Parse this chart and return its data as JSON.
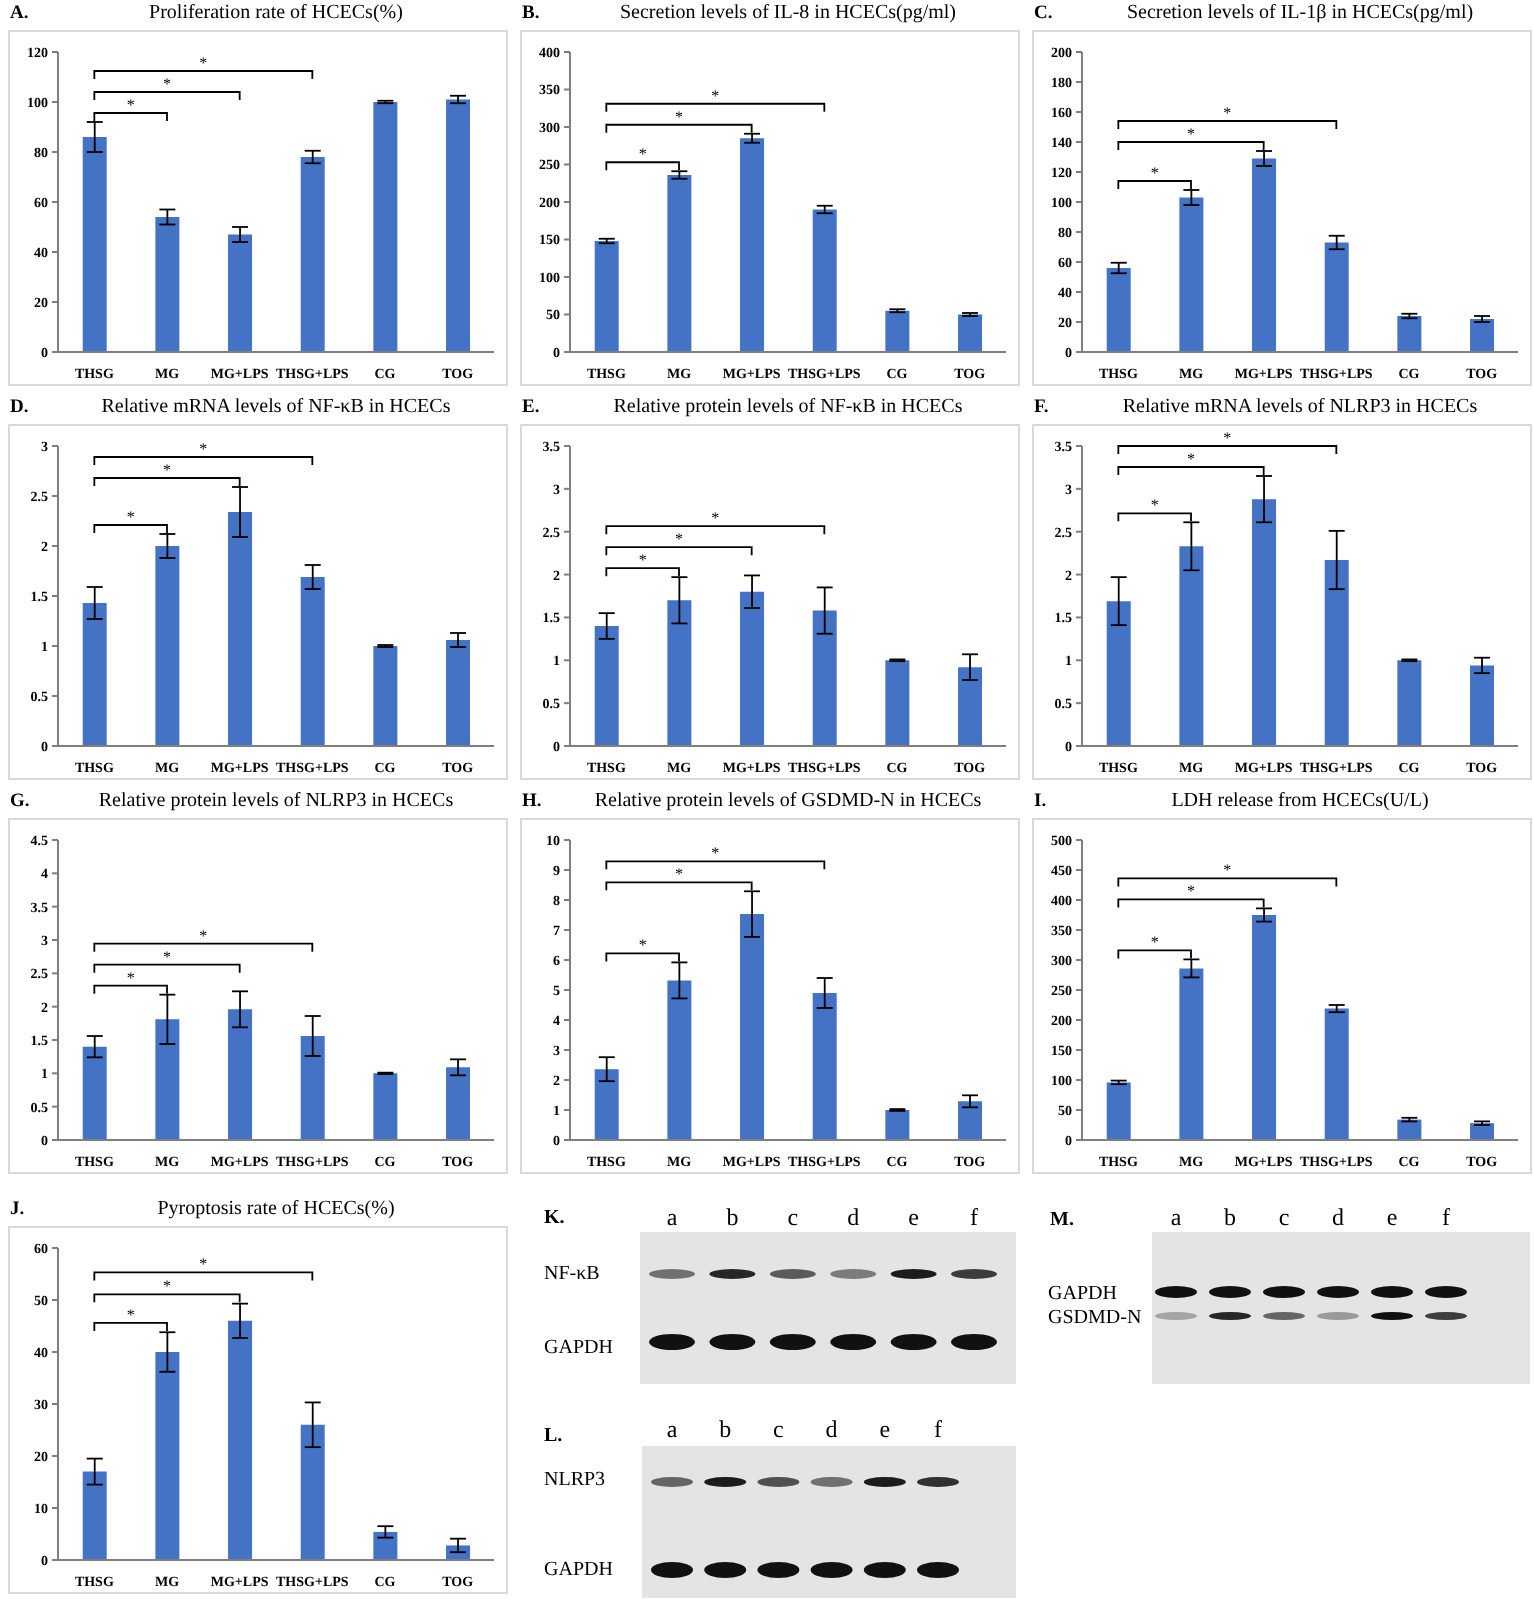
{
  "chart_data": [
    {
      "type": "bar",
      "title": "Proliferation rate of HCECs(%)",
      "annotations": [
        "A.",
        "*",
        "*",
        "*"
      ],
      "categories": [
        "THSG",
        "MG",
        "MG+LPS",
        "THSG+LPS",
        "CG",
        "TOG"
      ],
      "values": [
        86,
        54,
        47,
        78,
        100,
        101
      ],
      "errors": [
        6,
        3,
        3,
        2.5,
        0.5,
        1.5
      ],
      "color": "#4472c4",
      "ylim": [
        0,
        120
      ],
      "yticks": [
        0,
        20,
        40,
        60,
        80,
        100,
        120
      ]
    },
    {
      "type": "bar",
      "title": "Secretion levels of IL-8 in HCECs(pg/ml)",
      "annotations": [
        "B.",
        "*",
        "*",
        "*"
      ],
      "categories": [
        "THSG",
        "MG",
        "MG+LPS",
        "THSG+LPS",
        "CG",
        "TOG"
      ],
      "values": [
        148,
        236,
        285,
        190,
        55,
        50
      ],
      "errors": [
        3,
        5,
        6,
        5,
        2,
        2
      ],
      "color": "#4472c4",
      "ylim": [
        0,
        400
      ],
      "yticks": [
        0,
        50,
        100,
        150,
        200,
        250,
        300,
        350,
        400
      ]
    },
    {
      "type": "bar",
      "title": "Secretion levels of IL-1β in HCECs(pg/ml)",
      "annotations": [
        "C.",
        "*",
        "*",
        "*"
      ],
      "categories": [
        "THSG",
        "MG",
        "MG+LPS",
        "THSG+LPS",
        "CG",
        "TOG"
      ],
      "values": [
        56,
        103,
        129,
        73,
        24,
        22
      ],
      "errors": [
        3.5,
        5,
        5,
        4.5,
        1.5,
        2
      ],
      "color": "#4472c4",
      "ylim": [
        0,
        200
      ],
      "yticks": [
        0,
        20,
        40,
        60,
        80,
        100,
        120,
        140,
        160,
        180,
        200
      ]
    },
    {
      "type": "bar",
      "title": "Relative mRNA levels of NF-κB in HCECs",
      "annotations": [
        "D.",
        "*",
        "*",
        "*"
      ],
      "categories": [
        "THSG",
        "MG",
        "MG+LPS",
        "THSG+LPS",
        "CG",
        "TOG"
      ],
      "values": [
        1.43,
        2.0,
        2.34,
        1.69,
        1.0,
        1.06
      ],
      "errors": [
        0.16,
        0.12,
        0.25,
        0.12,
        0.01,
        0.07
      ],
      "color": "#4472c4",
      "ylim": [
        0,
        3
      ],
      "yticks": [
        0,
        0.5,
        1,
        1.5,
        2,
        2.5,
        3
      ]
    },
    {
      "type": "bar",
      "title": "Relative protein levels of NF-κB in HCECs",
      "annotations": [
        "E.",
        "*",
        "*",
        "*"
      ],
      "categories": [
        "THSG",
        "MG",
        "MG+LPS",
        "THSG+LPS",
        "CG",
        "TOG"
      ],
      "values": [
        1.4,
        1.7,
        1.8,
        1.58,
        1.0,
        0.92
      ],
      "errors": [
        0.15,
        0.27,
        0.19,
        0.27,
        0.01,
        0.15
      ],
      "color": "#4472c4",
      "ylim": [
        0,
        3.5
      ],
      "yticks": [
        0,
        0.5,
        1,
        1.5,
        2,
        2.5,
        3,
        3.5
      ]
    },
    {
      "type": "bar",
      "title": "Relative mRNA levels of NLRP3 in HCECs",
      "annotations": [
        "F.",
        "*",
        "*",
        "*"
      ],
      "categories": [
        "THSG",
        "MG",
        "MG+LPS",
        "THSG+LPS",
        "CG",
        "TOG"
      ],
      "values": [
        1.69,
        2.33,
        2.88,
        2.17,
        1.0,
        0.94
      ],
      "errors": [
        0.28,
        0.28,
        0.27,
        0.34,
        0.01,
        0.09
      ],
      "color": "#4472c4",
      "ylim": [
        0,
        3.5
      ],
      "yticks": [
        0,
        0.5,
        1,
        1.5,
        2,
        2.5,
        3,
        3.5
      ]
    },
    {
      "type": "bar",
      "title": "Relative protein levels of NLRP3 in HCECs",
      "annotations": [
        "G.",
        "*",
        "*",
        "*"
      ],
      "categories": [
        "THSG",
        "MG",
        "MG+LPS",
        "THSG+LPS",
        "CG",
        "TOG"
      ],
      "values": [
        1.4,
        1.81,
        1.96,
        1.56,
        1.0,
        1.09
      ],
      "errors": [
        0.16,
        0.37,
        0.27,
        0.3,
        0.01,
        0.12
      ],
      "color": "#4472c4",
      "ylim": [
        0,
        4.5
      ],
      "yticks": [
        0,
        0.5,
        1,
        1.5,
        2,
        2.5,
        3,
        3.5,
        4,
        4.5
      ]
    },
    {
      "type": "bar",
      "title": "Relative protein levels of GSDMD-N in HCECs",
      "annotations": [
        "H.",
        "*",
        "*",
        "*"
      ],
      "categories": [
        "THSG",
        "MG",
        "MG+LPS",
        "THSG+LPS",
        "CG",
        "TOG"
      ],
      "values": [
        2.36,
        5.32,
        7.53,
        4.9,
        1.0,
        1.29
      ],
      "errors": [
        0.4,
        0.6,
        0.76,
        0.5,
        0.03,
        0.2
      ],
      "color": "#4472c4",
      "ylim": [
        0,
        10
      ],
      "yticks": [
        0,
        1,
        2,
        3,
        4,
        5,
        6,
        7,
        8,
        9,
        10
      ]
    },
    {
      "type": "bar",
      "title": "LDH release from HCECs(U/L)",
      "annotations": [
        "I.",
        "*",
        "*",
        "*"
      ],
      "categories": [
        "THSG",
        "MG",
        "MG+LPS",
        "THSG+LPS",
        "CG",
        "TOG"
      ],
      "values": [
        96,
        286,
        375,
        219,
        34,
        28
      ],
      "errors": [
        3,
        15,
        11,
        6,
        3,
        3
      ],
      "color": "#4472c4",
      "ylim": [
        0,
        500
      ],
      "yticks": [
        0,
        50,
        100,
        150,
        200,
        250,
        300,
        350,
        400,
        450,
        500
      ]
    },
    {
      "type": "bar",
      "title": "Pyroptosis rate of HCECs(%)",
      "annotations": [
        "J.",
        "*",
        "*",
        "*"
      ],
      "categories": [
        "THSG",
        "MG",
        "MG+LPS",
        "THSG+LPS",
        "CG",
        "TOG"
      ],
      "values": [
        17,
        40,
        46,
        26,
        5.4,
        2.8
      ],
      "errors": [
        2.5,
        3.8,
        3.3,
        4.3,
        1.1,
        1.3
      ],
      "color": "#4472c4",
      "ylim": [
        0,
        60
      ],
      "yticks": [
        0,
        10,
        20,
        30,
        40,
        50,
        60
      ]
    },
    {
      "type": "other",
      "annotations": [
        "K."
      ],
      "categories": [
        "a",
        "b",
        "c",
        "d",
        "e",
        "f"
      ],
      "y_categories": [
        "NF-κB",
        "GAPDH"
      ]
    },
    {
      "type": "other",
      "annotations": [
        "L."
      ],
      "categories": [
        "a",
        "b",
        "c",
        "d",
        "e",
        "f"
      ],
      "y_categories": [
        "NLRP3",
        "GAPDH"
      ]
    },
    {
      "type": "other",
      "annotations": [
        "M."
      ],
      "categories": [
        "a",
        "b",
        "c",
        "d",
        "e",
        "f"
      ],
      "y_categories": [
        "GAPDH",
        "GSDMD-N"
      ]
    }
  ]
}
